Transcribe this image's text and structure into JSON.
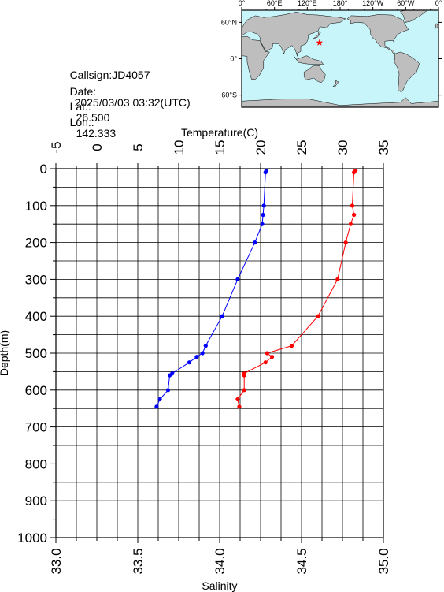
{
  "info": {
    "callsign": "Callsign:JD4057",
    "date_label": "Date:",
    "date_value": "2025/03/03 03:32(UTC)",
    "lat_label": "Lat.:",
    "lat_value": "26.500",
    "lon_label": "Lon.:",
    "lon_value": "142.333"
  },
  "map": {
    "top_labels": [
      "0°",
      "60°E",
      "120°E",
      "180°",
      "120°W",
      "60°W",
      "0°"
    ],
    "left_labels": [
      "60°N",
      "0°",
      "60°S"
    ],
    "ocean_color": "#c8f5fa",
    "land_color": "#bebebe",
    "marker": {
      "symbol": "star",
      "color": "#ff0000",
      "lon_e": 142.333,
      "lat": 26.5
    }
  },
  "chart_data": {
    "type": "line",
    "title": "",
    "top_axis": {
      "label": "Temperature(C)",
      "range": [
        -5,
        35
      ],
      "ticks": [
        "-5",
        "0",
        "5",
        "10",
        "15",
        "20",
        "25",
        "30",
        "35"
      ]
    },
    "bottom_axis": {
      "label": "Salinity",
      "range": [
        33.0,
        35.0
      ],
      "ticks": [
        "33.0",
        "33.5",
        "34.0",
        "34.5",
        "35.0"
      ]
    },
    "left_axis": {
      "label": "Depth(m)",
      "range": [
        0,
        1000
      ],
      "inverted": true,
      "ticks": [
        "0",
        "100",
        "200",
        "300",
        "400",
        "500",
        "600",
        "700",
        "800",
        "900",
        "1000"
      ]
    },
    "grid": true,
    "series": [
      {
        "variable": "temperature",
        "axis": "top",
        "color": "#0000ff",
        "points": [
          {
            "depth": 5,
            "value": 20.7
          },
          {
            "depth": 10,
            "value": 20.6
          },
          {
            "depth": 100,
            "value": 20.4
          },
          {
            "depth": 125,
            "value": 20.3
          },
          {
            "depth": 150,
            "value": 20.2
          },
          {
            "depth": 200,
            "value": 19.3
          },
          {
            "depth": 300,
            "value": 17.2
          },
          {
            "depth": 400,
            "value": 15.3
          },
          {
            "depth": 480,
            "value": 13.3
          },
          {
            "depth": 500,
            "value": 12.9
          },
          {
            "depth": 510,
            "value": 12.2
          },
          {
            "depth": 525,
            "value": 11.3
          },
          {
            "depth": 555,
            "value": 9.2
          },
          {
            "depth": 560,
            "value": 8.9
          },
          {
            "depth": 600,
            "value": 8.7
          },
          {
            "depth": 625,
            "value": 7.7
          },
          {
            "depth": 645,
            "value": 7.3
          }
        ]
      },
      {
        "variable": "salinity",
        "axis": "bottom",
        "color": "#ff0000",
        "points": [
          {
            "depth": 5,
            "value": 34.83
          },
          {
            "depth": 10,
            "value": 34.82
          },
          {
            "depth": 100,
            "value": 34.81
          },
          {
            "depth": 125,
            "value": 34.82
          },
          {
            "depth": 150,
            "value": 34.8
          },
          {
            "depth": 200,
            "value": 34.77
          },
          {
            "depth": 300,
            "value": 34.72
          },
          {
            "depth": 400,
            "value": 34.6
          },
          {
            "depth": 480,
            "value": 34.44
          },
          {
            "depth": 500,
            "value": 34.29
          },
          {
            "depth": 510,
            "value": 34.32
          },
          {
            "depth": 525,
            "value": 34.28
          },
          {
            "depth": 555,
            "value": 34.15
          },
          {
            "depth": 560,
            "value": 34.15
          },
          {
            "depth": 600,
            "value": 34.15
          },
          {
            "depth": 625,
            "value": 34.11
          },
          {
            "depth": 645,
            "value": 34.12
          }
        ]
      }
    ]
  }
}
